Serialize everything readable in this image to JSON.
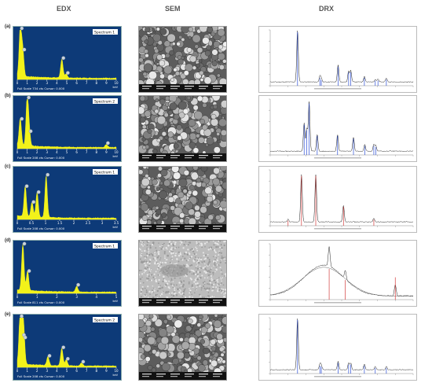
{
  "headers": {
    "edx": "EDX",
    "sem": "SEM",
    "drx": "DRX"
  },
  "rows": [
    {
      "label": "(a)",
      "spectrum": "Spectrum 1",
      "edx_ticks": [
        "0",
        "1",
        "2",
        "3",
        "4",
        "5",
        "6",
        "7",
        "8",
        "9",
        "10"
      ],
      "edx_footer": "Full Scale 734 cts Cursor: 0.000",
      "edx_unit": "keV",
      "edx_peaks": [
        [
          0.3,
          0.98
        ],
        [
          0.55,
          0.55
        ],
        [
          4.5,
          0.38
        ],
        [
          4.95,
          0.08
        ]
      ],
      "drx_peaks": [
        [
          25.3,
          0.92
        ],
        [
          37.8,
          0.1
        ],
        [
          38.6,
          0.06
        ],
        [
          48.0,
          0.3
        ],
        [
          53.9,
          0.2
        ],
        [
          55.1,
          0.2
        ],
        [
          62.7,
          0.1
        ],
        [
          68.8,
          0.05
        ],
        [
          70.3,
          0.05
        ],
        [
          75.0,
          0.07
        ]
      ],
      "drx_color": "#2d4fd6"
    },
    {
      "label": "(b)",
      "spectrum": "Spectrum 2",
      "edx_ticks": [
        "0",
        "1",
        "2",
        "3",
        "4",
        "5",
        "6",
        "7",
        "8",
        "9",
        "10"
      ],
      "edx_footer": "Full Scale 208 cts Cursor: 0.000",
      "edx_unit": "keV",
      "edx_peaks": [
        [
          0.3,
          0.55
        ],
        [
          1.0,
          0.98
        ],
        [
          1.2,
          0.3
        ],
        [
          9.0,
          0.06
        ]
      ],
      "drx_peaks": [
        [
          29.0,
          0.5
        ],
        [
          30.5,
          0.4
        ],
        [
          31.8,
          0.88
        ],
        [
          36.3,
          0.3
        ],
        [
          47.7,
          0.3
        ],
        [
          56.6,
          0.25
        ],
        [
          62.9,
          0.12
        ],
        [
          68.0,
          0.12
        ],
        [
          69.1,
          0.1
        ]
      ],
      "drx_color": "#2d4fd6"
    },
    {
      "label": "(c)",
      "spectrum": "Spectrum 1",
      "edx_ticks": [
        "0",
        "0.5",
        "1",
        "1.5",
        "2",
        "2.5",
        "3",
        "3.5"
      ],
      "edx_footer": "Full Scale 208 cts Cursor: 0.000",
      "edx_unit": "keV",
      "edx_peaks": [
        [
          0.28,
          0.62
        ],
        [
          0.52,
          0.3
        ],
        [
          0.7,
          0.5
        ],
        [
          1.02,
          0.85
        ]
      ],
      "drx_peaks": [
        [
          20.0,
          0.05
        ],
        [
          27.5,
          0.85
        ],
        [
          35.5,
          0.85
        ],
        [
          51.0,
          0.3
        ],
        [
          68.0,
          0.07
        ]
      ],
      "drx_color": "#d43b3b"
    },
    {
      "label": "(d)",
      "spectrum": "Spectrum 1",
      "edx_ticks": [
        "0",
        "1",
        "2",
        "3",
        "4",
        "5"
      ],
      "edx_footer": "Full Scale 811 cts Cursor: 0.000",
      "edx_unit": "keV",
      "edx_peaks": [
        [
          0.28,
          0.95
        ],
        [
          0.52,
          0.4
        ],
        [
          3.0,
          0.12
        ]
      ],
      "drx_peaks": [
        [
          43.0,
          0.35
        ],
        [
          52.0,
          0.15
        ],
        [
          80.0,
          0.2
        ]
      ],
      "drx_color": "#d43b3b"
    },
    {
      "label": "(e)",
      "spectrum": "Spectrum 2",
      "edx_ticks": [
        "0",
        "1",
        "2",
        "3",
        "4",
        "5",
        "6",
        "7",
        "8",
        "9",
        "10"
      ],
      "edx_footer": "Full Scale 208 cts Cursor: 0.000",
      "edx_unit": "keV",
      "edx_peaks": [
        [
          0.28,
          0.98
        ],
        [
          0.52,
          0.6
        ],
        [
          0.65,
          0.55
        ],
        [
          3.1,
          0.18
        ],
        [
          4.5,
          0.35
        ],
        [
          4.95,
          0.12
        ],
        [
          6.5,
          0.06
        ]
      ],
      "drx_peaks": [
        [
          25.3,
          0.92
        ],
        [
          37.8,
          0.1
        ],
        [
          38.6,
          0.08
        ],
        [
          48.0,
          0.15
        ],
        [
          53.9,
          0.12
        ],
        [
          55.1,
          0.12
        ],
        [
          62.7,
          0.1
        ],
        [
          68.8,
          0.06
        ],
        [
          75.0,
          0.06
        ]
      ],
      "drx_color": "#2d4fd6"
    }
  ]
}
